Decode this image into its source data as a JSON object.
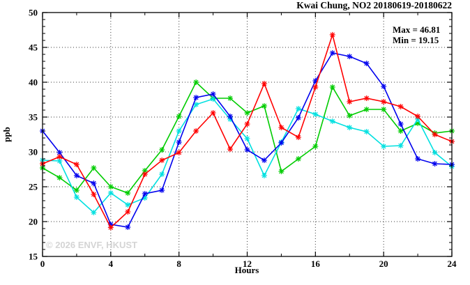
{
  "title": "Kwai Chung, NO2 20180619-20180622",
  "annotation": {
    "max_label": "Max = 46.81",
    "min_label": "Min = 19.15"
  },
  "watermark": "© 2026 ENVF, HKUST",
  "chart_data": {
    "type": "line",
    "title": "Kwai Chung, NO2 20180619-20180622",
    "xlabel": "Hours",
    "ylabel": "ppb",
    "xlim": [
      0,
      24
    ],
    "ylim": [
      15,
      50
    ],
    "x_major_ticks": [
      0,
      4,
      8,
      12,
      16,
      20,
      24
    ],
    "x_minor_ticks": [
      2,
      6,
      10,
      14,
      18,
      22
    ],
    "y_major_ticks": [
      15,
      20,
      25,
      30,
      35,
      40,
      45,
      50
    ],
    "y_minor_step": 1,
    "x_gridlines": [
      4,
      8,
      12,
      16,
      20
    ],
    "y_gridlines": [
      20,
      25,
      30,
      35,
      40,
      45
    ],
    "grid": "dotted",
    "legend": "none",
    "marker": "asterisk",
    "max_value": 46.81,
    "min_value": 19.15,
    "x": [
      0,
      1,
      2,
      3,
      4,
      5,
      6,
      7,
      8,
      9,
      10,
      11,
      12,
      13,
      14,
      15,
      16,
      17,
      18,
      19,
      20,
      21,
      22,
      23,
      24
    ],
    "series": [
      {
        "name": "series-green",
        "color": "#00cc00",
        "values": [
          27.7,
          26.3,
          24.5,
          27.7,
          25.0,
          24.1,
          27.3,
          30.3,
          35.1,
          40.0,
          37.7,
          37.7,
          35.6,
          36.6,
          27.2,
          29.0,
          30.8,
          39.3,
          35.2,
          36.1,
          36.1,
          33.0,
          34.1,
          32.7,
          33.0
        ]
      },
      {
        "name": "series-cyan",
        "color": "#00e0e0",
        "values": [
          28.8,
          28.7,
          23.5,
          21.3,
          24.1,
          22.4,
          23.4,
          26.8,
          33.0,
          36.8,
          37.6,
          34.7,
          31.9,
          26.6,
          31.4,
          36.2,
          35.4,
          34.4,
          33.5,
          32.9,
          30.8,
          30.9,
          34.7,
          29.9,
          27.9
        ]
      },
      {
        "name": "series-blue",
        "color": "#0000ee",
        "values": [
          33.0,
          29.9,
          26.6,
          25.5,
          19.6,
          19.2,
          24.0,
          24.5,
          31.4,
          37.8,
          38.3,
          35.1,
          30.3,
          28.8,
          31.3,
          34.9,
          40.2,
          44.2,
          43.7,
          42.7,
          39.4,
          34.0,
          29.0,
          28.3,
          28.2
        ]
      },
      {
        "name": "series-red",
        "color": "#ff0000",
        "values": [
          28.3,
          29.3,
          28.2,
          23.9,
          19.15,
          21.4,
          26.8,
          28.8,
          29.9,
          33.0,
          35.6,
          30.4,
          34.0,
          39.8,
          33.5,
          32.1,
          39.3,
          46.81,
          37.2,
          37.7,
          37.2,
          36.5,
          35.1,
          32.5,
          31.5
        ]
      }
    ]
  }
}
